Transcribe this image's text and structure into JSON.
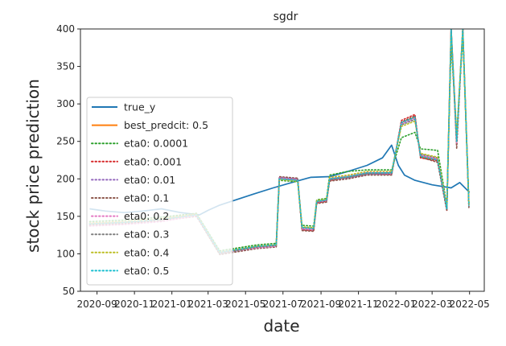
{
  "chart_data": {
    "type": "line",
    "title": "sgdr",
    "xlabel": "date",
    "ylabel": "stock price prediction",
    "ylim": [
      50,
      400
    ],
    "xlim": [
      "2020-08-05",
      "2022-05-25"
    ],
    "x_ticks": [
      "2020-09",
      "2020-11",
      "2021-01",
      "2021-03",
      "2021-05",
      "2021-07",
      "2021-09",
      "2021-11",
      "2022-01",
      "2022-03",
      "2022-05"
    ],
    "y_ticks": [
      50,
      100,
      150,
      200,
      250,
      300,
      350,
      400
    ],
    "legend_position": "lower-left",
    "grid": false,
    "series": [
      {
        "name": "true_y",
        "color": "#1f77b4",
        "style": "solid",
        "points": [
          [
            "2020-08-20",
            160
          ],
          [
            "2020-09-15",
            157
          ],
          [
            "2020-10-15",
            155
          ],
          [
            "2020-11-15",
            157
          ],
          [
            "2020-12-15",
            160
          ],
          [
            "2021-01-15",
            155
          ],
          [
            "2021-02-15",
            152
          ],
          [
            "2021-03-01",
            158
          ],
          [
            "2021-03-20",
            165
          ],
          [
            "2021-04-15",
            172
          ],
          [
            "2021-05-15",
            180
          ],
          [
            "2021-06-15",
            188
          ],
          [
            "2021-07-15",
            195
          ],
          [
            "2021-08-15",
            202
          ],
          [
            "2021-09-15",
            203
          ],
          [
            "2021-10-15",
            210
          ],
          [
            "2021-11-15",
            218
          ],
          [
            "2021-12-10",
            228
          ],
          [
            "2021-12-25",
            245
          ],
          [
            "2022-01-05",
            218
          ],
          [
            "2022-01-15",
            205
          ],
          [
            "2022-02-01",
            198
          ],
          [
            "2022-03-01",
            192
          ],
          [
            "2022-04-01",
            188
          ],
          [
            "2022-04-15",
            195
          ],
          [
            "2022-05-01",
            182
          ]
        ]
      },
      {
        "name": "best_predcit: 0.5",
        "color": "#ff7f0e",
        "style": "solid",
        "points": [
          [
            "2020-08-20",
            140
          ],
          [
            "2020-10-15",
            142
          ],
          [
            "2020-12-15",
            146
          ],
          [
            "2021-02-10",
            152
          ],
          [
            "2021-03-20",
            102
          ],
          [
            "2021-05-20",
            110
          ],
          [
            "2021-06-20",
            112
          ],
          [
            "2021-06-25",
            200
          ],
          [
            "2021-07-25",
            198
          ],
          [
            "2021-08-01",
            135
          ],
          [
            "2021-08-20",
            134
          ],
          [
            "2021-08-25",
            170
          ],
          [
            "2021-09-10",
            172
          ],
          [
            "2021-09-15",
            200
          ],
          [
            "2021-10-15",
            203
          ],
          [
            "2021-11-15",
            208
          ],
          [
            "2021-12-25",
            208
          ],
          [
            "2022-01-10",
            275
          ],
          [
            "2022-02-01",
            282
          ],
          [
            "2022-02-10",
            230
          ],
          [
            "2022-03-10",
            225
          ],
          [
            "2022-03-25",
            160
          ],
          [
            "2022-04-01",
            400
          ],
          [
            "2022-04-10",
            250
          ],
          [
            "2022-04-20",
            400
          ],
          [
            "2022-04-30",
            165
          ]
        ]
      },
      {
        "name": "eta0: 0.0001",
        "color": "#2ca02c",
        "style": "dotted",
        "points": [
          [
            "2020-08-20",
            143
          ],
          [
            "2020-10-15",
            145
          ],
          [
            "2020-12-15",
            149
          ],
          [
            "2021-02-10",
            154
          ],
          [
            "2021-03-20",
            104
          ],
          [
            "2021-05-20",
            112
          ],
          [
            "2021-06-20",
            114
          ],
          [
            "2021-06-25",
            198
          ],
          [
            "2021-07-25",
            196
          ],
          [
            "2021-08-01",
            138
          ],
          [
            "2021-08-20",
            137
          ],
          [
            "2021-08-25",
            172
          ],
          [
            "2021-09-10",
            174
          ],
          [
            "2021-09-15",
            205
          ],
          [
            "2021-10-15",
            210
          ],
          [
            "2021-11-15",
            212
          ],
          [
            "2021-12-25",
            212
          ],
          [
            "2022-01-10",
            255
          ],
          [
            "2022-02-01",
            262
          ],
          [
            "2022-02-10",
            240
          ],
          [
            "2022-03-10",
            238
          ],
          [
            "2022-03-25",
            165
          ],
          [
            "2022-04-01",
            380
          ],
          [
            "2022-04-10",
            260
          ],
          [
            "2022-04-20",
            390
          ],
          [
            "2022-04-30",
            168
          ]
        ]
      },
      {
        "name": "eta0: 0.001",
        "color": "#d62728",
        "style": "dotted",
        "points": [
          [
            "2020-08-20",
            141
          ],
          [
            "2020-10-15",
            143
          ],
          [
            "2020-12-15",
            147
          ],
          [
            "2021-02-10",
            153
          ],
          [
            "2021-03-20",
            101
          ],
          [
            "2021-05-20",
            109
          ],
          [
            "2021-06-20",
            111
          ],
          [
            "2021-06-25",
            201
          ],
          [
            "2021-07-25",
            199
          ],
          [
            "2021-08-01",
            132
          ],
          [
            "2021-08-20",
            131
          ],
          [
            "2021-08-25",
            168
          ],
          [
            "2021-09-10",
            170
          ],
          [
            "2021-09-15",
            198
          ],
          [
            "2021-10-15",
            202
          ],
          [
            "2021-11-15",
            207
          ],
          [
            "2021-12-25",
            206
          ],
          [
            "2022-01-10",
            278
          ],
          [
            "2022-02-01",
            286
          ],
          [
            "2022-02-10",
            228
          ],
          [
            "2022-03-10",
            224
          ],
          [
            "2022-03-25",
            158
          ],
          [
            "2022-04-01",
            400
          ],
          [
            "2022-04-10",
            245
          ],
          [
            "2022-04-20",
            400
          ],
          [
            "2022-04-30",
            162
          ]
        ]
      },
      {
        "name": "eta0: 0.01",
        "color": "#9467bd",
        "style": "dotted",
        "points": [
          [
            "2020-08-20",
            139
          ],
          [
            "2020-10-15",
            141
          ],
          [
            "2020-12-15",
            145
          ],
          [
            "2021-02-10",
            151
          ],
          [
            "2021-03-20",
            100
          ],
          [
            "2021-05-20",
            108
          ],
          [
            "2021-06-20",
            110
          ],
          [
            "2021-06-25",
            202
          ],
          [
            "2021-07-25",
            200
          ],
          [
            "2021-08-01",
            133
          ],
          [
            "2021-08-20",
            132
          ],
          [
            "2021-08-25",
            169
          ],
          [
            "2021-09-10",
            171
          ],
          [
            "2021-09-15",
            199
          ],
          [
            "2021-10-15",
            201
          ],
          [
            "2021-11-15",
            206
          ],
          [
            "2021-12-25",
            207
          ],
          [
            "2022-01-10",
            273
          ],
          [
            "2022-02-01",
            280
          ],
          [
            "2022-02-10",
            232
          ],
          [
            "2022-03-10",
            226
          ],
          [
            "2022-03-25",
            161
          ],
          [
            "2022-04-01",
            400
          ],
          [
            "2022-04-10",
            255
          ],
          [
            "2022-04-20",
            400
          ],
          [
            "2022-04-30",
            164
          ]
        ]
      },
      {
        "name": "eta0: 0.1",
        "color": "#8c564b",
        "style": "dotted",
        "points": [
          [
            "2020-08-20",
            138
          ],
          [
            "2020-10-15",
            140
          ],
          [
            "2020-12-15",
            144
          ],
          [
            "2021-02-10",
            150
          ],
          [
            "2021-03-20",
            99
          ],
          [
            "2021-05-20",
            107
          ],
          [
            "2021-06-20",
            109
          ],
          [
            "2021-06-25",
            203
          ],
          [
            "2021-07-25",
            201
          ],
          [
            "2021-08-01",
            131
          ],
          [
            "2021-08-20",
            130
          ],
          [
            "2021-08-25",
            167
          ],
          [
            "2021-09-10",
            169
          ],
          [
            "2021-09-15",
            197
          ],
          [
            "2021-10-15",
            200
          ],
          [
            "2021-11-15",
            205
          ],
          [
            "2021-12-25",
            205
          ],
          [
            "2022-01-10",
            276
          ],
          [
            "2022-02-01",
            284
          ],
          [
            "2022-02-10",
            229
          ],
          [
            "2022-03-10",
            222
          ],
          [
            "2022-03-25",
            157
          ],
          [
            "2022-04-01",
            400
          ],
          [
            "2022-04-10",
            240
          ],
          [
            "2022-04-20",
            400
          ],
          [
            "2022-04-30",
            160
          ]
        ]
      },
      {
        "name": "eta0: 0.2",
        "color": "#e377c2",
        "style": "dotted",
        "points": [
          [
            "2020-08-20",
            137
          ],
          [
            "2020-10-15",
            139
          ],
          [
            "2020-12-15",
            143
          ],
          [
            "2021-02-10",
            151
          ],
          [
            "2021-03-20",
            101
          ],
          [
            "2021-05-20",
            108
          ],
          [
            "2021-06-20",
            110
          ],
          [
            "2021-06-25",
            201
          ],
          [
            "2021-07-25",
            199
          ],
          [
            "2021-08-01",
            134
          ],
          [
            "2021-08-20",
            133
          ],
          [
            "2021-08-25",
            170
          ],
          [
            "2021-09-10",
            172
          ],
          [
            "2021-09-15",
            201
          ],
          [
            "2021-10-15",
            204
          ],
          [
            "2021-11-15",
            209
          ],
          [
            "2021-12-25",
            209
          ],
          [
            "2022-01-10",
            274
          ],
          [
            "2022-02-01",
            281
          ],
          [
            "2022-02-10",
            231
          ],
          [
            "2022-03-10",
            227
          ],
          [
            "2022-03-25",
            162
          ],
          [
            "2022-04-01",
            400
          ],
          [
            "2022-04-10",
            248
          ],
          [
            "2022-04-20",
            400
          ],
          [
            "2022-04-30",
            166
          ]
        ]
      },
      {
        "name": "eta0: 0.3",
        "color": "#7f7f7f",
        "style": "dotted",
        "points": [
          [
            "2020-08-20",
            140
          ],
          [
            "2020-10-15",
            142
          ],
          [
            "2020-12-15",
            146
          ],
          [
            "2021-02-10",
            152
          ],
          [
            "2021-03-20",
            100
          ],
          [
            "2021-05-20",
            109
          ],
          [
            "2021-06-20",
            111
          ],
          [
            "2021-06-25",
            200
          ],
          [
            "2021-07-25",
            198
          ],
          [
            "2021-08-01",
            135
          ],
          [
            "2021-08-20",
            134
          ],
          [
            "2021-08-25",
            170
          ],
          [
            "2021-09-10",
            172
          ],
          [
            "2021-09-15",
            199
          ],
          [
            "2021-10-15",
            202
          ],
          [
            "2021-11-15",
            207
          ],
          [
            "2021-12-25",
            208
          ],
          [
            "2022-01-10",
            272
          ],
          [
            "2022-02-01",
            279
          ],
          [
            "2022-02-10",
            233
          ],
          [
            "2022-03-10",
            228
          ],
          [
            "2022-03-25",
            159
          ],
          [
            "2022-04-01",
            400
          ],
          [
            "2022-04-10",
            252
          ],
          [
            "2022-04-20",
            400
          ],
          [
            "2022-04-30",
            163
          ]
        ]
      },
      {
        "name": "eta0: 0.4",
        "color": "#bcbd22",
        "style": "dotted",
        "points": [
          [
            "2020-08-20",
            141
          ],
          [
            "2020-10-15",
            143
          ],
          [
            "2020-12-15",
            147
          ],
          [
            "2021-02-10",
            153
          ],
          [
            "2021-03-20",
            102
          ],
          [
            "2021-05-20",
            110
          ],
          [
            "2021-06-20",
            112
          ],
          [
            "2021-06-25",
            199
          ],
          [
            "2021-07-25",
            197
          ],
          [
            "2021-08-01",
            136
          ],
          [
            "2021-08-20",
            135
          ],
          [
            "2021-08-25",
            171
          ],
          [
            "2021-09-10",
            173
          ],
          [
            "2021-09-15",
            202
          ],
          [
            "2021-10-15",
            205
          ],
          [
            "2021-11-15",
            210
          ],
          [
            "2021-12-25",
            210
          ],
          [
            "2022-01-10",
            270
          ],
          [
            "2022-02-01",
            277
          ],
          [
            "2022-02-10",
            234
          ],
          [
            "2022-03-10",
            229
          ],
          [
            "2022-03-25",
            163
          ],
          [
            "2022-04-01",
            395
          ],
          [
            "2022-04-10",
            258
          ],
          [
            "2022-04-20",
            398
          ],
          [
            "2022-04-30",
            167
          ]
        ]
      },
      {
        "name": "eta0: 0.5",
        "color": "#17becf",
        "style": "dotted",
        "points": [
          [
            "2020-08-20",
            140
          ],
          [
            "2020-10-15",
            142
          ],
          [
            "2020-12-15",
            146
          ],
          [
            "2021-02-10",
            152
          ],
          [
            "2021-03-20",
            102
          ],
          [
            "2021-05-20",
            110
          ],
          [
            "2021-06-20",
            112
          ],
          [
            "2021-06-25",
            200
          ],
          [
            "2021-07-25",
            198
          ],
          [
            "2021-08-01",
            135
          ],
          [
            "2021-08-20",
            134
          ],
          [
            "2021-08-25",
            170
          ],
          [
            "2021-09-10",
            172
          ],
          [
            "2021-09-15",
            200
          ],
          [
            "2021-10-15",
            203
          ],
          [
            "2021-11-15",
            208
          ],
          [
            "2021-12-25",
            208
          ],
          [
            "2022-01-10",
            275
          ],
          [
            "2022-02-01",
            282
          ],
          [
            "2022-02-10",
            230
          ],
          [
            "2022-03-10",
            225
          ],
          [
            "2022-03-25",
            160
          ],
          [
            "2022-04-01",
            400
          ],
          [
            "2022-04-10",
            250
          ],
          [
            "2022-04-20",
            400
          ],
          [
            "2022-04-30",
            165
          ]
        ]
      }
    ]
  }
}
